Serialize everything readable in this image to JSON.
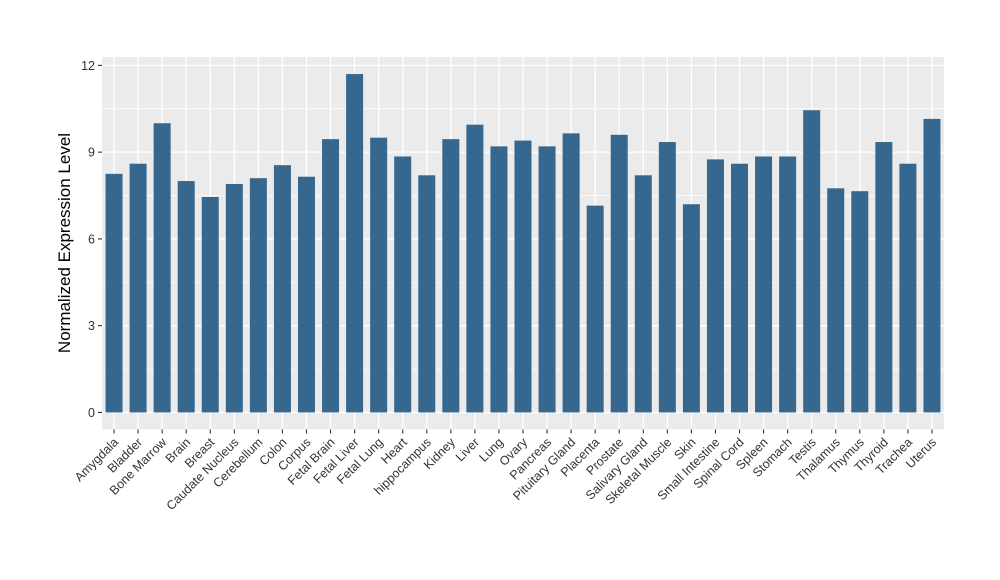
{
  "figure": {
    "background": "#FFFFFF"
  },
  "chart_data": {
    "type": "bar",
    "title": "",
    "xlabel": "",
    "ylabel": "Normalized Expression Level",
    "categories": [
      "Amygdala",
      "Bladder",
      "Bone Marrow",
      "Brain",
      "Breast",
      "Caudate Nucleus",
      "Cerebellum",
      "Colon",
      "Corpus",
      "Fetal Brain",
      "Fetal Liver",
      "Fetal Lung",
      "Heart",
      "hippocampus",
      "Kidney",
      "Liver",
      "Lung",
      "Ovary",
      "Pancreas",
      "Pituitary Gland",
      "Placenta",
      "Prostate",
      "Salivary Gland",
      "Skeletal Muscle",
      "Skin",
      "Small Intestine",
      "Spinal Cord",
      "Spleen",
      "Stomach",
      "Testis",
      "Thalamus",
      "Thymus",
      "Thyroid",
      "Trachea",
      "Uterus"
    ],
    "values": [
      8.25,
      8.6,
      10.0,
      8.0,
      7.45,
      7.9,
      8.1,
      8.55,
      8.15,
      9.45,
      11.7,
      9.5,
      8.85,
      8.2,
      9.45,
      9.95,
      9.2,
      9.4,
      9.2,
      9.65,
      7.15,
      9.6,
      8.2,
      9.35,
      7.2,
      8.75,
      8.6,
      8.85,
      8.85,
      10.45,
      7.75,
      7.65,
      9.35,
      8.6,
      10.15
    ],
    "yticks": [
      0,
      3,
      6,
      9,
      12
    ],
    "ytick_labels": [
      "0",
      "3",
      "6",
      "9",
      "12"
    ],
    "yticks_minor": [
      1.5,
      4.5,
      7.5,
      10.5
    ],
    "ylim": [
      0,
      12
    ],
    "ylim_expanded": [
      -0.59,
      12.29
    ],
    "x_tick_rotation_deg": 45,
    "grid": true,
    "legend": "none",
    "colors": {
      "bar": "#36688F",
      "panel_background": "#EBEBEB",
      "gridline": "#FFFFFF",
      "axis_text": "#333333",
      "axis_title": "#000000",
      "tick_mark": "#333333",
      "figure_background": "#FFFFFF"
    }
  }
}
